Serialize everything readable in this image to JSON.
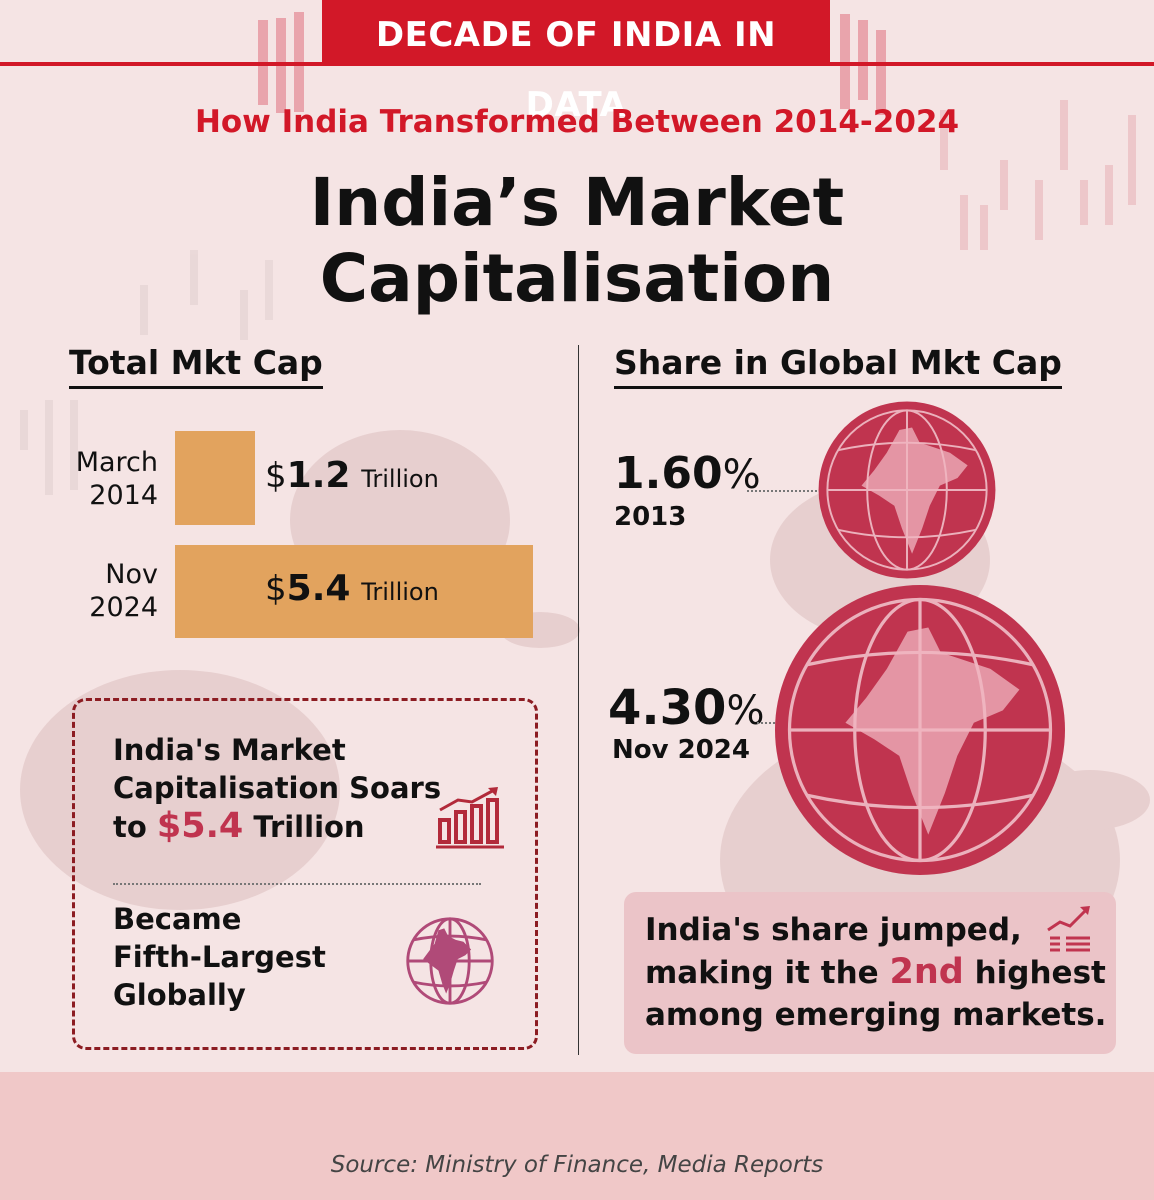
{
  "banner": {
    "label": "DECADE OF INDIA IN DATA"
  },
  "subtitle": "How India Transformed Between 2014-2024",
  "title": {
    "line1": "India’s Market",
    "line2": "Capitalisation"
  },
  "left_section": {
    "heading": "Total Mkt Cap"
  },
  "right_section": {
    "heading": "Share in Global Mkt Cap"
  },
  "chart_data": [
    {
      "type": "bar",
      "title": "Total Mkt Cap",
      "orientation": "horizontal",
      "categories": [
        [
          "March",
          "2014"
        ],
        [
          "Nov",
          "2024"
        ]
      ],
      "values": [
        1.2,
        5.4
      ],
      "value_prefix": "$",
      "value_unit": "Trillion",
      "bar_color": "#e2a35e"
    },
    {
      "type": "bubble",
      "title": "Share in Global Mkt Cap",
      "points": [
        {
          "value": 1.6,
          "label": "1.60",
          "suffix": "%",
          "year": "2013"
        },
        {
          "value": 4.3,
          "label": "4.30",
          "suffix": "%",
          "year": "Nov 2024"
        }
      ],
      "circle_color": "#c0344f"
    }
  ],
  "highlight_box": {
    "line1": "India's Market",
    "line2": "Capitalisation Soars",
    "line3_prefix": "to ",
    "line3_value": "$5.4",
    "line3_suffix": " Trillion",
    "rank_line1": "Became",
    "rank_line2": "Fifth-Largest",
    "rank_line3": "Globally",
    "icons": [
      "bar-growth-icon",
      "globe-india-icon"
    ]
  },
  "callout": {
    "line1": "India's share jumped,",
    "line2_prefix": "making it the ",
    "line2_value": "2nd",
    "line2_suffix": " highest",
    "line3": "among emerging markets."
  },
  "source": "Source: Ministry of Finance, Media Reports",
  "colors": {
    "brand_red": "#d21828",
    "accent": "#c0344f",
    "bar": "#e2a35e",
    "background": "#f5e4e4"
  }
}
